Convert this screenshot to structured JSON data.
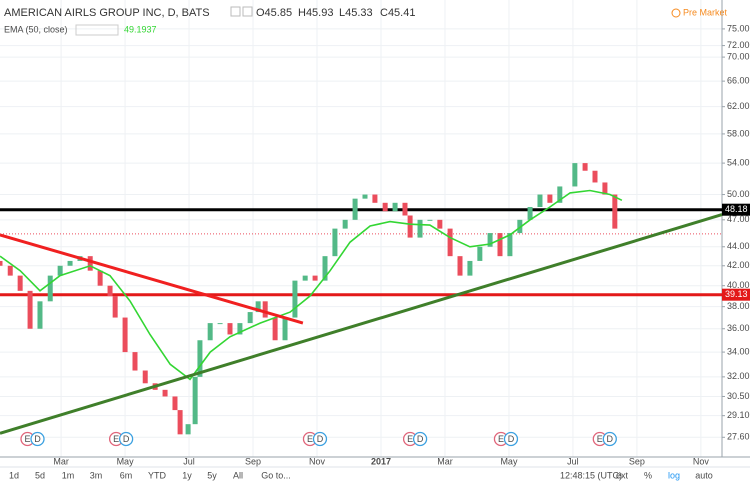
{
  "chart_data": {
    "type": "candlestick",
    "title": "AMERICAN AIRLS GROUP INC, D, BATS",
    "ohlc_labels": [
      "O45.85",
      "H45.93",
      "L45.33",
      "C45.41"
    ],
    "indicator": {
      "name": "EMA (50, close)",
      "last": 49.1937,
      "color": "#33d633",
      "x": [
        0.09,
        0.72,
        1.34,
        1.97,
        2.91,
        3.53,
        4.16,
        4.78,
        5.41,
        6.03,
        6.66,
        7.28,
        8.22,
        9.16,
        9.78,
        10.41,
        11.03,
        11.66,
        12.28,
        12.91,
        13.53,
        14.16,
        14.78,
        15.41,
        16.03,
        16.66,
        17.28,
        17.91,
        18.53,
        19.16,
        19.53
      ],
      "values": [
        43,
        41.5,
        39.5,
        41,
        42,
        41,
        38.5,
        35.5,
        33,
        31.8,
        34,
        35.3,
        36.5,
        37.5,
        39,
        41.5,
        44.5,
        46.3,
        46.8,
        46.5,
        46.4,
        45,
        44,
        44.3,
        45.3,
        47,
        48.5,
        50.2,
        50.5,
        50,
        49.3
      ]
    },
    "session": "Pre Market",
    "x": [
      0.09,
      0.41,
      0.72,
      1.03,
      1.34,
      1.66,
      1.97,
      2.28,
      2.59,
      2.91,
      3.22,
      3.53,
      3.69,
      4.0,
      4.31,
      4.63,
      4.94,
      5.25,
      5.56,
      5.72,
      5.97,
      6.19,
      6.34,
      6.66,
      6.97,
      7.28,
      7.59,
      7.91,
      8.16,
      8.38,
      8.69,
      9.0,
      9.31,
      9.63,
      9.94,
      10.25,
      10.56,
      10.88,
      11.19,
      11.5,
      11.81,
      12.13,
      12.44,
      12.75,
      12.91,
      13.22,
      13.53,
      13.84,
      14.16,
      14.47,
      14.78,
      15.09,
      15.41,
      15.72,
      16.03,
      16.34,
      16.66,
      16.97,
      17.28,
      17.59,
      18.06,
      18.38,
      18.69,
      19.0,
      19.31
    ],
    "open": [
      42.5,
      42,
      41,
      39.5,
      36,
      38.5,
      41,
      42,
      42.5,
      43,
      41.5,
      40,
      39,
      37,
      34,
      32.5,
      31.5,
      31,
      30.5,
      29.5,
      27.8,
      28.5,
      32,
      35,
      36.5,
      36.5,
      35.5,
      36.5,
      37.5,
      38.5,
      37,
      35,
      37,
      40.5,
      41,
      40.5,
      43,
      46,
      47,
      49.5,
      50,
      49,
      48,
      49,
      47.5,
      45,
      47,
      47,
      46,
      43,
      41,
      42.5,
      44,
      45.5,
      43,
      45.5,
      47,
      48.5,
      50,
      49,
      51,
      54,
      53,
      51.5,
      50
    ],
    "close": [
      42,
      41,
      39.5,
      36,
      38.5,
      41,
      42,
      42.5,
      43,
      41.5,
      40,
      39,
      37,
      34,
      32.5,
      31.5,
      31,
      30.5,
      29.5,
      27.8,
      28.5,
      32,
      35,
      36.5,
      36.5,
      35.5,
      36.5,
      37.5,
      38.5,
      37,
      35,
      37,
      40.5,
      41,
      40.5,
      43,
      46,
      47,
      49.5,
      50,
      49,
      48,
      49,
      47.5,
      45,
      47,
      47,
      46,
      43,
      41,
      42.5,
      44,
      45.5,
      43,
      45.5,
      47,
      48.5,
      50,
      49,
      51,
      54,
      53,
      51.5,
      50,
      46
    ],
    "up_color": "#53b987",
    "down_color": "#eb4d5c",
    "hlines": [
      {
        "value": 48.18,
        "color": "#000000"
      },
      {
        "value": 39.13,
        "color": "#e31919"
      }
    ],
    "price_line": 45.41,
    "trendlines": [
      {
        "x": [
          0.09,
          9.56
        ],
        "values": [
          45.3,
          36.5
        ],
        "color": "#f02020"
      },
      {
        "x": [
          0.09,
          22.66
        ],
        "values": [
          27.87,
          47.6
        ],
        "color": "#3f7f2a"
      }
    ],
    "events": [
      {
        "x": 0.95,
        "kinds": [
          "E",
          "D"
        ]
      },
      {
        "x": 3.72,
        "kinds": [
          "E",
          "D"
        ]
      },
      {
        "x": 9.78,
        "kinds": [
          "E",
          "D"
        ]
      },
      {
        "x": 12.91,
        "kinds": [
          "E",
          "D"
        ]
      },
      {
        "x": 15.75,
        "kinds": [
          "E",
          "D"
        ]
      },
      {
        "x": 18.84,
        "kinds": [
          "E",
          "D"
        ]
      }
    ],
    "log_scale": true,
    "grid": true,
    "xlim": [
      0.09,
      22.66
    ],
    "xticks": [
      {
        "value": 2,
        "label": "Mar"
      },
      {
        "value": 4,
        "label": "May"
      },
      {
        "value": 6,
        "label": "Jul"
      },
      {
        "value": 8,
        "label": "Sep"
      },
      {
        "value": 10,
        "label": "Nov"
      },
      {
        "value": 12,
        "label": "2017"
      },
      {
        "value": 14,
        "label": "Mar"
      },
      {
        "value": 16,
        "label": "May"
      },
      {
        "value": 18,
        "label": "Jul"
      },
      {
        "value": 20,
        "label": "Sep"
      },
      {
        "value": 22,
        "label": "Nov"
      }
    ],
    "ylim": [
      26.3,
      80.5
    ],
    "yticks": [
      {
        "value": 75,
        "label": "75.00"
      },
      {
        "value": 72,
        "label": "72.00"
      },
      {
        "value": 70,
        "label": "70.00"
      },
      {
        "value": 66,
        "label": "66.00"
      },
      {
        "value": 62,
        "label": "62.00"
      },
      {
        "value": 58,
        "label": "58.00"
      },
      {
        "value": 54,
        "label": "54.00"
      },
      {
        "value": 50,
        "label": "50.00"
      },
      {
        "value": 47,
        "label": "47.00"
      },
      {
        "value": 44,
        "label": "44.00"
      },
      {
        "value": 42,
        "label": "42.00"
      },
      {
        "value": 40,
        "label": "40.00"
      },
      {
        "value": 38,
        "label": "38.00"
      },
      {
        "value": 36,
        "label": "36.00"
      },
      {
        "value": 34,
        "label": "34.00"
      },
      {
        "value": 32,
        "label": "32.00"
      },
      {
        "value": 30.5,
        "label": "30.50"
      },
      {
        "value": 29.1,
        "label": "29.10"
      },
      {
        "value": 27.6,
        "label": "27.60"
      }
    ]
  },
  "toolbar": {
    "ranges": [
      "1d",
      "5d",
      "1m",
      "3m",
      "6m",
      "YTD",
      "1y",
      "5y",
      "All",
      "Go to..."
    ],
    "clock": "12:48:15 (UTC)",
    "options": [
      "ext",
      "%",
      "log",
      "auto"
    ]
  }
}
